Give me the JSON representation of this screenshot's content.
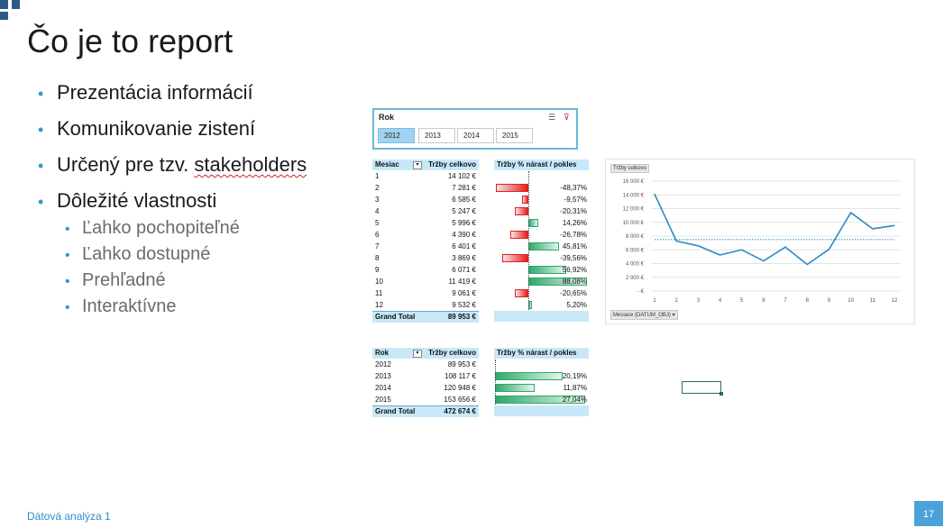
{
  "slide": {
    "title": "Čo je to report",
    "bullets": [
      "Prezentácia informácií",
      "Komunikovanie zistení",
      "Určený pre tzv. stakeholders",
      "Dôležité vlastnosti"
    ],
    "squiggle_word": "stakeholders",
    "sub_bullets": [
      "Ľahko pochopiteľné",
      "Ľahko dostupné",
      "Prehľadné",
      "Interaktívne"
    ],
    "footer": "Dátová analýza 1",
    "page_number": "17",
    "accent_color": "#2e9fc0"
  },
  "slicer": {
    "title": "Rok",
    "items": [
      "2012",
      "2013",
      "2014",
      "2015"
    ],
    "selected": "2012",
    "icons": [
      "multi-select-icon",
      "clear-filter-icon"
    ]
  },
  "month_table": {
    "headers": [
      "Mesiac",
      "Tržby celkovo"
    ],
    "change_header": "Tržby % nárast / pokles",
    "rows": [
      {
        "m": "1",
        "v": "14 102 €",
        "c": "",
        "p": null
      },
      {
        "m": "2",
        "v": "7 281 €",
        "c": "-48,37%",
        "p": -48.37
      },
      {
        "m": "3",
        "v": "6 585 €",
        "c": "-9,57%",
        "p": -9.57
      },
      {
        "m": "4",
        "v": "5 247 €",
        "c": "-20,31%",
        "p": -20.31
      },
      {
        "m": "5",
        "v": "5 996 €",
        "c": "14,26%",
        "p": 14.26
      },
      {
        "m": "6",
        "v": "4 390 €",
        "c": "-26,78%",
        "p": -26.78
      },
      {
        "m": "7",
        "v": "6 401 €",
        "c": "45,81%",
        "p": 45.81
      },
      {
        "m": "8",
        "v": "3 869 €",
        "c": "-39,56%",
        "p": -39.56
      },
      {
        "m": "9",
        "v": "6 071 €",
        "c": "56,92%",
        "p": 56.92
      },
      {
        "m": "10",
        "v": "11 419 €",
        "c": "88,08%",
        "p": 88.08
      },
      {
        "m": "11",
        "v": "9 061 €",
        "c": "-20,65%",
        "p": -20.65
      },
      {
        "m": "12",
        "v": "9 532 €",
        "c": "5,20%",
        "p": 5.2
      }
    ],
    "total_label": "Grand Total",
    "total_value": "89 953 €"
  },
  "year_table": {
    "headers": [
      "Rok",
      "Tržby celkovo"
    ],
    "change_header": "Tržby % nárast / pokles",
    "rows": [
      {
        "m": "2012",
        "v": "89 953 €",
        "c": "",
        "p": null
      },
      {
        "m": "2013",
        "v": "108 117 €",
        "c": "20,19%",
        "p": 20.19
      },
      {
        "m": "2014",
        "v": "120 948 €",
        "c": "11,87%",
        "p": 11.87
      },
      {
        "m": "2015",
        "v": "153 656 €",
        "c": "27,04%",
        "p": 27.04
      }
    ],
    "total_label": "Grand Total",
    "total_value": "472 674 €"
  },
  "chart_data": {
    "type": "line",
    "title": "",
    "series_tag": "Tržby celkovo",
    "field_button": "Mesiace (DATUM_OBJ)",
    "x": [
      1,
      2,
      3,
      4,
      5,
      6,
      7,
      8,
      9,
      10,
      11,
      12
    ],
    "series": [
      {
        "name": "Tržby celkovo",
        "values": [
          14102,
          7281,
          6585,
          5247,
          5996,
          4390,
          6401,
          3869,
          6071,
          11419,
          9061,
          9532
        ]
      }
    ],
    "trendline": 7500,
    "ylim": [
      0,
      16000
    ],
    "yticks": [
      "16 000 €",
      "14 000 €",
      "12 000 €",
      "10 000 €",
      "8 000 €",
      "6 000 €",
      "4 000 €",
      "2 000 €",
      "- €"
    ],
    "xticks": [
      "1",
      "2",
      "3",
      "4",
      "5",
      "6",
      "7",
      "8",
      "9",
      "10",
      "11",
      "12"
    ],
    "line_color": "#2a8cc4",
    "grid": true
  }
}
